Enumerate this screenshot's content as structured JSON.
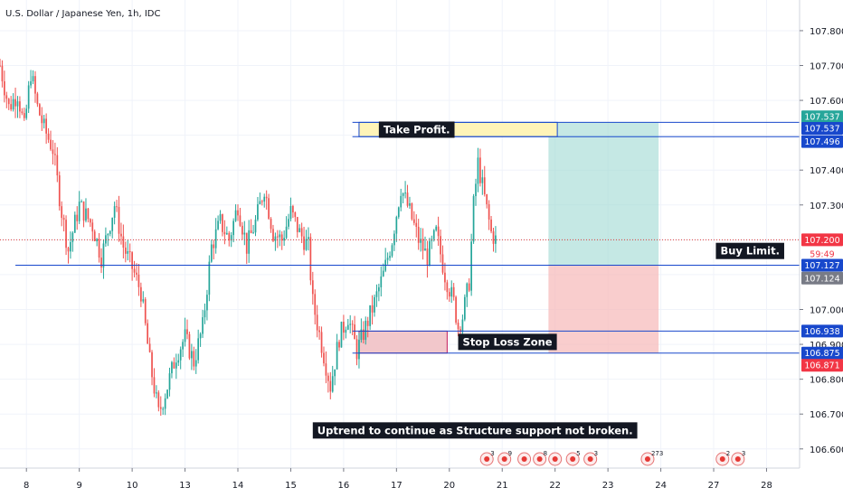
{
  "chart_data": {
    "type": "candlestick",
    "title": "U.S. Dollar / Japanese Yen, 1h, IDC",
    "ylim": [
      106.545,
      107.888
    ],
    "grid": true,
    "y_ticks": [
      107.8,
      107.7,
      107.6,
      107.4,
      107.3,
      107.0,
      106.9,
      106.8,
      106.7,
      106.6
    ],
    "y_tick_labels": [
      "107.800",
      "107.700",
      "107.600",
      "107.400",
      "107.300",
      "107.000",
      "106.900",
      "106.800",
      "106.700",
      "106.600"
    ],
    "x_axis_labels": [
      {
        "t": 0,
        "label": "8"
      },
      {
        "t": 24,
        "label": "9"
      },
      {
        "t": 48,
        "label": "10"
      },
      {
        "t": 72,
        "label": "13"
      },
      {
        "t": 96,
        "label": "14"
      },
      {
        "t": 120,
        "label": "15"
      },
      {
        "t": 144,
        "label": "16"
      },
      {
        "t": 168,
        "label": "17"
      },
      {
        "t": 192,
        "label": "20"
      },
      {
        "t": 216,
        "label": "21"
      },
      {
        "t": 240,
        "label": "22"
      },
      {
        "t": 264,
        "label": "23"
      },
      {
        "t": 288,
        "label": "24"
      },
      {
        "t": 312,
        "label": "27"
      },
      {
        "t": 336,
        "label": "28"
      }
    ],
    "x_range": [
      -12,
      351
    ],
    "price_path": [
      {
        "t": -12,
        "p": 107.7
      },
      {
        "t": -8,
        "p": 107.58
      },
      {
        "t": -4,
        "p": 107.62
      },
      {
        "t": -1,
        "p": 107.52
      },
      {
        "t": 2,
        "p": 107.68
      },
      {
        "t": 5,
        "p": 107.58
      },
      {
        "t": 8,
        "p": 107.52
      },
      {
        "t": 12,
        "p": 107.46
      },
      {
        "t": 16,
        "p": 107.28
      },
      {
        "t": 19,
        "p": 107.17
      },
      {
        "t": 24,
        "p": 107.3
      },
      {
        "t": 30,
        "p": 107.24
      },
      {
        "t": 34,
        "p": 107.15
      },
      {
        "t": 40,
        "p": 107.3
      },
      {
        "t": 44,
        "p": 107.18
      },
      {
        "t": 48,
        "p": 107.12
      },
      {
        "t": 52,
        "p": 107.05
      },
      {
        "t": 56,
        "p": 106.85
      },
      {
        "t": 60,
        "p": 106.7
      },
      {
        "t": 64,
        "p": 106.78
      },
      {
        "t": 68,
        "p": 106.87
      },
      {
        "t": 72,
        "p": 106.92
      },
      {
        "t": 76,
        "p": 106.85
      },
      {
        "t": 80,
        "p": 106.95
      },
      {
        "t": 84,
        "p": 107.18
      },
      {
        "t": 88,
        "p": 107.25
      },
      {
        "t": 92,
        "p": 107.2
      },
      {
        "t": 96,
        "p": 107.3
      },
      {
        "t": 100,
        "p": 107.18
      },
      {
        "t": 104,
        "p": 107.25
      },
      {
        "t": 108,
        "p": 107.35
      },
      {
        "t": 112,
        "p": 107.22
      },
      {
        "t": 116,
        "p": 107.2
      },
      {
        "t": 120,
        "p": 107.28
      },
      {
        "t": 124,
        "p": 107.22
      },
      {
        "t": 128,
        "p": 107.18
      },
      {
        "t": 130,
        "p": 107.02
      },
      {
        "t": 134,
        "p": 106.9
      },
      {
        "t": 138,
        "p": 106.78
      },
      {
        "t": 142,
        "p": 106.92
      },
      {
        "t": 146,
        "p": 106.98
      },
      {
        "t": 150,
        "p": 106.88
      },
      {
        "t": 154,
        "p": 106.95
      },
      {
        "t": 158,
        "p": 107.02
      },
      {
        "t": 162,
        "p": 107.1
      },
      {
        "t": 166,
        "p": 107.2
      },
      {
        "t": 170,
        "p": 107.35
      },
      {
        "t": 174,
        "p": 107.28
      },
      {
        "t": 178,
        "p": 107.2
      },
      {
        "t": 182,
        "p": 107.15
      },
      {
        "t": 186,
        "p": 107.22
      },
      {
        "t": 190,
        "p": 107.1
      },
      {
        "t": 194,
        "p": 107.02
      },
      {
        "t": 196,
        "p": 106.95
      },
      {
        "t": 198,
        "p": 106.98
      },
      {
        "t": 201,
        "p": 107.08
      },
      {
        "t": 203,
        "p": 107.3
      },
      {
        "t": 205,
        "p": 107.42
      },
      {
        "t": 208,
        "p": 107.32
      },
      {
        "t": 211,
        "p": 107.22
      },
      {
        "t": 213,
        "p": 107.2
      }
    ],
    "hlines": [
      {
        "price": 107.537,
        "from_t": 148,
        "color": "#1848cc"
      },
      {
        "price": 107.496,
        "from_t": 148,
        "color": "#1848cc"
      },
      {
        "price": 107.127,
        "from_t": -5,
        "color": "#1848cc"
      },
      {
        "price": 106.938,
        "from_t": 148,
        "color": "#1848cc"
      },
      {
        "price": 106.875,
        "from_t": 148,
        "color": "#1848cc"
      }
    ],
    "current_price_line": {
      "price": 107.2,
      "color": "#e23a3a"
    },
    "target_box": {
      "from_t": 237,
      "to_t": 287,
      "top": 107.537,
      "bottom": 107.127,
      "color": "#9fd9d2"
    },
    "stop_box": {
      "from_t": 237,
      "to_t": 287,
      "top": 107.127,
      "bottom": 106.875,
      "color": "#f7b8b8"
    },
    "tp_zone": {
      "from_t": 151,
      "to_t": 241,
      "top": 107.537,
      "bottom": 107.496,
      "color": "#fff4b8"
    },
    "sl_zone": {
      "from_t": 151,
      "to_t": 191,
      "top": 106.938,
      "bottom": 106.875,
      "color": "#f2c7cb"
    },
    "annotations": [
      {
        "text": "Take Profit.",
        "t": 160,
        "price": 107.516
      },
      {
        "text": "Buy Limit.",
        "t": 313,
        "price": 107.168
      },
      {
        "text": "Stop Loss Zone",
        "t": 196,
        "price": 106.907
      },
      {
        "text": "Uptrend to continue as Structure support not broken.",
        "t": 130,
        "price": 106.653
      }
    ],
    "price_badges": [
      {
        "text": "107.537",
        "price": 107.553,
        "color": "#26a69a"
      },
      {
        "text": "107.537",
        "price": 107.52,
        "color": "#1848cc"
      },
      {
        "text": "107.496",
        "price": 107.482,
        "color": "#1848cc"
      },
      {
        "text": "107.200",
        "price": 107.2,
        "color": "#f23645"
      },
      {
        "text": "59:49",
        "price": 107.16,
        "color": "#ffffff",
        "text_color": "#f23645"
      },
      {
        "text": "107.127",
        "price": 107.127,
        "color": "#1848cc"
      },
      {
        "text": "107.124",
        "price": 107.09,
        "color": "#787b86"
      },
      {
        "text": "106.938",
        "price": 106.938,
        "color": "#1848cc"
      },
      {
        "text": "106.875",
        "price": 106.875,
        "color": "#1848cc"
      },
      {
        "text": "106.871",
        "price": 106.84,
        "color": "#f23645"
      }
    ],
    "event_badges": [
      {
        "t": 209,
        "text": "3"
      },
      {
        "t": 217,
        "text": "9"
      },
      {
        "t": 226,
        "text": ""
      },
      {
        "t": 233,
        "text": "8"
      },
      {
        "t": 240,
        "text": ""
      },
      {
        "t": 248,
        "text": "5"
      },
      {
        "t": 256,
        "text": "3"
      },
      {
        "t": 282,
        "text": "273"
      },
      {
        "t": 316,
        "text": "2"
      },
      {
        "t": 323,
        "text": "3"
      }
    ],
    "colors": {
      "up": "#26a69a",
      "down": "#ef5350",
      "grid": "#f0f3fa",
      "axis_text": "#131722"
    }
  }
}
